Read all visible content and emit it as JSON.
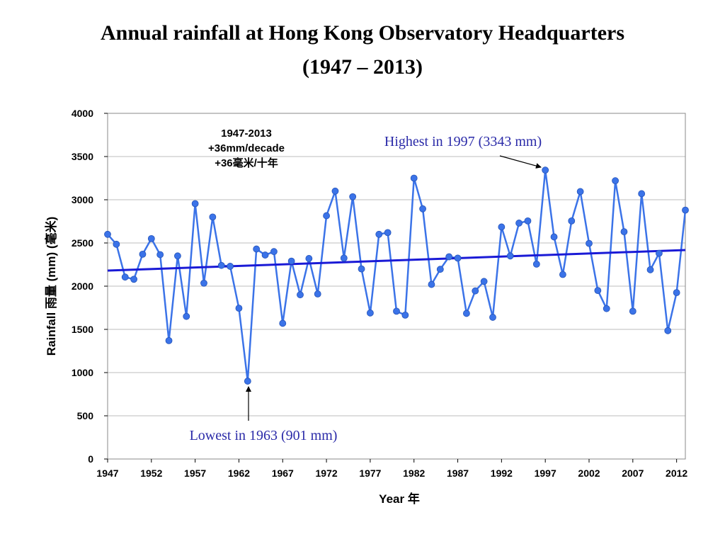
{
  "title_line1": "Annual rainfall at Hong Kong Observatory Headquarters",
  "title_line2": "(1947 – 2013)",
  "chart_data": {
    "type": "line",
    "xlabel": "Year 年",
    "ylabel": "Rainfall 雨量 (mm) (毫米)",
    "xlim": [
      1947,
      2013
    ],
    "ylim": [
      0,
      4000
    ],
    "y_ticks": [
      0,
      500,
      1000,
      1500,
      2000,
      2500,
      3000,
      3500,
      4000
    ],
    "x_ticks": [
      1947,
      1952,
      1957,
      1962,
      1967,
      1972,
      1977,
      1982,
      1987,
      1992,
      1997,
      2002,
      2007,
      2012
    ],
    "grid": true,
    "series": [
      {
        "color": "#3b73e8",
        "x": [
          1947,
          1948,
          1949,
          1950,
          1951,
          1952,
          1953,
          1954,
          1955,
          1956,
          1957,
          1958,
          1959,
          1960,
          1961,
          1962,
          1963,
          1964,
          1965,
          1966,
          1967,
          1968,
          1969,
          1970,
          1971,
          1972,
          1973,
          1974,
          1975,
          1976,
          1977,
          1978,
          1979,
          1980,
          1981,
          1982,
          1983,
          1984,
          1985,
          1986,
          1987,
          1988,
          1989,
          1990,
          1991,
          1992,
          1993,
          1994,
          1995,
          1996,
          1997,
          1998,
          1999,
          2000,
          2001,
          2002,
          2003,
          2004,
          2005,
          2006,
          2007,
          2008,
          2009,
          2010,
          2011,
          2012,
          2013
        ],
        "values": [
          2600,
          2485,
          2105,
          2080,
          2370,
          2550,
          2365,
          1370,
          2350,
          1650,
          2955,
          2035,
          2800,
          2240,
          2230,
          1745,
          901,
          2430,
          2360,
          2400,
          1570,
          2290,
          1900,
          2320,
          1910,
          2815,
          3100,
          2325,
          3035,
          2200,
          1690,
          2600,
          2620,
          1710,
          1665,
          3250,
          2895,
          2020,
          2195,
          2340,
          2325,
          1685,
          1945,
          2055,
          1640,
          2685,
          2350,
          2730,
          2755,
          2255,
          3343,
          2570,
          2135,
          2755,
          3095,
          2495,
          1950,
          1740,
          3220,
          2630,
          1710,
          3070,
          2190,
          2380,
          1485,
          1925,
          2880
        ]
      },
      {
        "color": "#1a1ad6",
        "x": [
          1947,
          2013
        ],
        "values": [
          2180,
          2418
        ]
      }
    ],
    "trend_text": [
      "1947-2013",
      "+36mm/decade",
      "+36毫米/十年"
    ],
    "annotations": {
      "highest": "Highest in 1997 (3343 mm)",
      "lowest": "Lowest in 1963 (901 mm)"
    }
  }
}
